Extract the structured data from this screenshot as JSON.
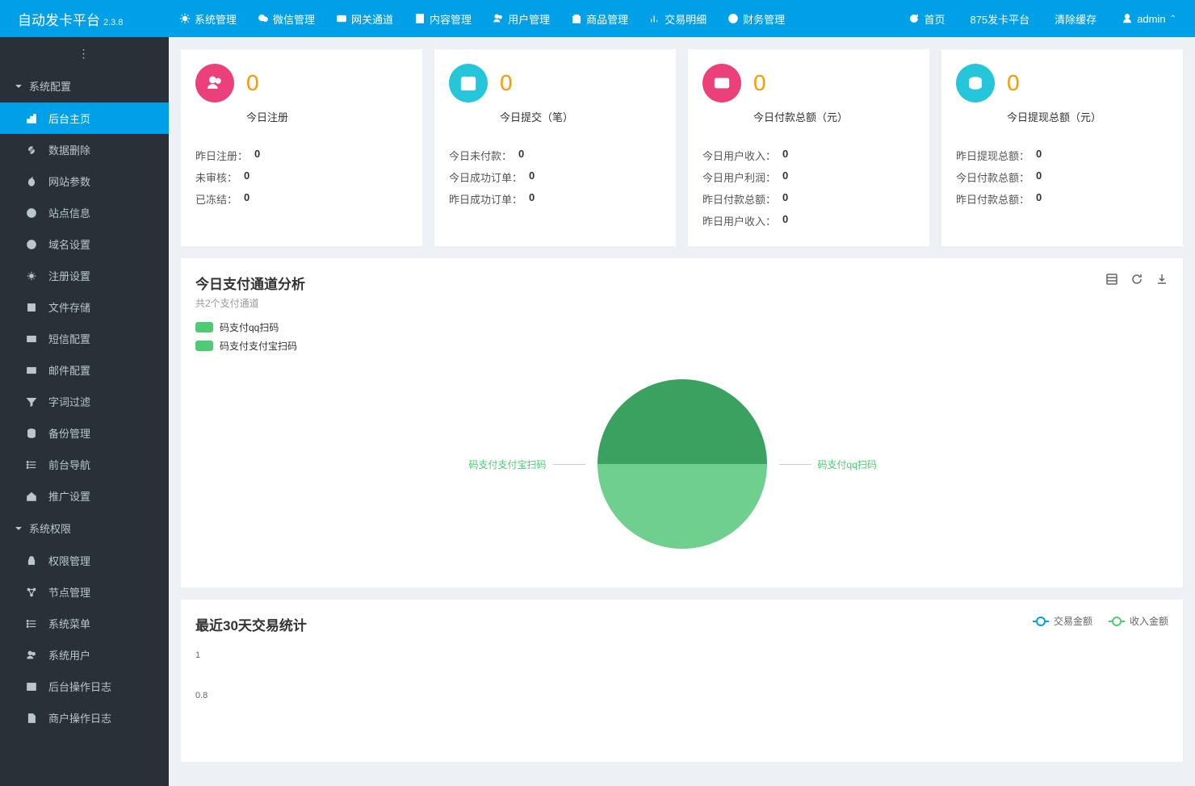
{
  "header": {
    "logo": "自动发卡平台",
    "version": "2.3.8",
    "nav": [
      {
        "icon": "gear",
        "label": "系统管理"
      },
      {
        "icon": "wechat",
        "label": "微信管理"
      },
      {
        "icon": "gateway",
        "label": "网关通道"
      },
      {
        "icon": "content",
        "label": "内容管理"
      },
      {
        "icon": "users",
        "label": "用户管理"
      },
      {
        "icon": "goods",
        "label": "商品管理"
      },
      {
        "icon": "chart",
        "label": "交易明细"
      },
      {
        "icon": "money",
        "label": "财务管理"
      }
    ],
    "right": [
      {
        "icon": "refresh",
        "label": "首页"
      },
      {
        "icon": "",
        "label": "875发卡平台"
      },
      {
        "icon": "",
        "label": "清除缓存"
      },
      {
        "icon": "user",
        "label": "admin",
        "caret": true
      }
    ]
  },
  "sidebar": {
    "section1": "系统配置",
    "items1": [
      {
        "icon": "dashboard",
        "label": "后台主页",
        "active": true
      },
      {
        "icon": "link",
        "label": "数据删除"
      },
      {
        "icon": "apple",
        "label": "网站参数"
      },
      {
        "icon": "info",
        "label": "站点信息"
      },
      {
        "icon": "at",
        "label": "域名设置"
      },
      {
        "icon": "cog",
        "label": "注册设置"
      },
      {
        "icon": "save",
        "label": "文件存储"
      },
      {
        "icon": "mail",
        "label": "短信配置"
      },
      {
        "icon": "mail",
        "label": "邮件配置"
      },
      {
        "icon": "filter",
        "label": "字词过滤"
      },
      {
        "icon": "database",
        "label": "备份管理"
      },
      {
        "icon": "list",
        "label": "前台导航"
      },
      {
        "icon": "home",
        "label": "推广设置"
      }
    ],
    "section2": "系统权限",
    "items2": [
      {
        "icon": "lock",
        "label": "权限管理"
      },
      {
        "icon": "nodes",
        "label": "节点管理"
      },
      {
        "icon": "list",
        "label": "系统菜单"
      },
      {
        "icon": "users",
        "label": "系统用户"
      },
      {
        "icon": "terminal",
        "label": "后台操作日志"
      },
      {
        "icon": "file",
        "label": "商户操作日志"
      }
    ]
  },
  "cards": [
    {
      "iconColor": "#ec407a",
      "icon": "users",
      "num": "0",
      "numColor": "#ff9800",
      "label": "今日注册",
      "stats": [
        {
          "k": "昨日注册：",
          "v": "0"
        },
        {
          "k": "未审核：",
          "v": "0"
        },
        {
          "k": "已冻结：",
          "v": "0"
        }
      ]
    },
    {
      "iconColor": "#26c6da",
      "icon": "calendar",
      "num": "0",
      "numColor": "#ff9800",
      "label": "今日提交（笔）",
      "stats": [
        {
          "k": "今日未付款：",
          "v": "0"
        },
        {
          "k": "今日成功订单：",
          "v": "0"
        },
        {
          "k": "昨日成功订单：",
          "v": "0"
        }
      ]
    },
    {
      "iconColor": "#ec407a",
      "icon": "card",
      "num": "0",
      "numColor": "#ff9800",
      "label": "今日付款总额（元）",
      "stats": [
        {
          "k": "今日用户收入：",
          "v": "0"
        },
        {
          "k": "今日用户利润：",
          "v": "0"
        },
        {
          "k": "昨日付款总额：",
          "v": "0"
        },
        {
          "k": "昨日用户收入：",
          "v": "0"
        }
      ]
    },
    {
      "iconColor": "#26c6da",
      "icon": "coins",
      "num": "0",
      "numColor": "#ff9800",
      "label": "今日提现总额（元）",
      "stats": [
        {
          "k": "昨日提现总额：",
          "v": "0"
        },
        {
          "k": "今日付款总额：",
          "v": "0"
        },
        {
          "k": "昨日付款总额：",
          "v": "0"
        }
      ]
    }
  ],
  "pie": {
    "title": "今日支付通道分析",
    "subtitle": "共2个支付通道",
    "legend": [
      {
        "color": "#4ecb73",
        "label": "码支付qq扫码"
      },
      {
        "color": "#4ecb73",
        "label": "码支付支付宝扫码"
      }
    ],
    "slices": [
      {
        "color": "#3ba160",
        "label": "码支付支付宝扫码",
        "pct": 50
      },
      {
        "color": "#6fcf8e",
        "label": "码支付qq扫码",
        "pct": 50
      }
    ]
  },
  "line": {
    "title": "最近30天交易统计",
    "legend": [
      {
        "color": "#00a0e9",
        "label": "交易金额"
      },
      {
        "color": "#4ecb73",
        "label": "收入金额"
      }
    ],
    "ylabels": [
      "1",
      "0.8"
    ]
  }
}
